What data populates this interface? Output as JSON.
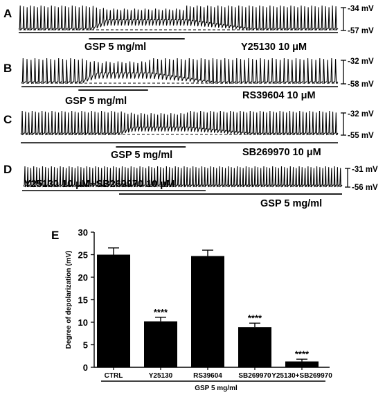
{
  "traces": [
    {
      "letter": "A",
      "mv_top": "-34 mV",
      "mv_bottom": "-57 mV",
      "drug_label": "Y25130 10 μM",
      "gsp_label": "GSP 5 mg/ml",
      "spike_count": 92,
      "gsp_window": [
        0.22,
        0.52
      ],
      "depolarization_fraction": 0.35
    },
    {
      "letter": "B",
      "mv_top": "-32 mV",
      "mv_bottom": "-58 mV",
      "drug_label": "RS39604 10 μM",
      "gsp_label": "GSP 5 mg/ml",
      "spike_count": 80,
      "gsp_window": [
        0.18,
        0.4
      ],
      "depolarization_fraction": 0.35
    },
    {
      "letter": "C",
      "mv_top": "-32 mV",
      "mv_bottom": "-55 mV",
      "drug_label": "SB269970 10 μM",
      "gsp_label": "GSP 5 mg/ml",
      "spike_count": 96,
      "gsp_window": [
        0.3,
        0.52
      ],
      "depolarization_fraction": 0.25
    },
    {
      "letter": "D",
      "mv_top": "-31 mV",
      "mv_bottom": "-56 mV",
      "drug_label": "Y25130 10 μM+SB269970 10 μM",
      "gsp_label": "GSP 5 mg/ml",
      "spike_count": 108,
      "gsp_window": [
        0.3,
        1.0
      ],
      "depolarization_fraction": 0.0
    }
  ],
  "chart_data": {
    "type": "bar",
    "panel_letter": "E",
    "categories": [
      "CTRL",
      "Y25130",
      "RS39604",
      "SB269970",
      "Y25130+SB269970"
    ],
    "values": [
      25,
      10.2,
      24.7,
      8.9,
      1.3
    ],
    "errors": [
      1.5,
      0.9,
      1.3,
      0.9,
      0.5
    ],
    "significance": [
      "",
      "****",
      "",
      "****",
      "****"
    ],
    "ylabel": "Degree of depolarization (mV)",
    "xlabel": "GSP 5 mg/ml",
    "ylim": [
      0,
      30
    ],
    "yticks": [
      0,
      5,
      10,
      15,
      20,
      25,
      30
    ],
    "bar_color": "#000000"
  }
}
